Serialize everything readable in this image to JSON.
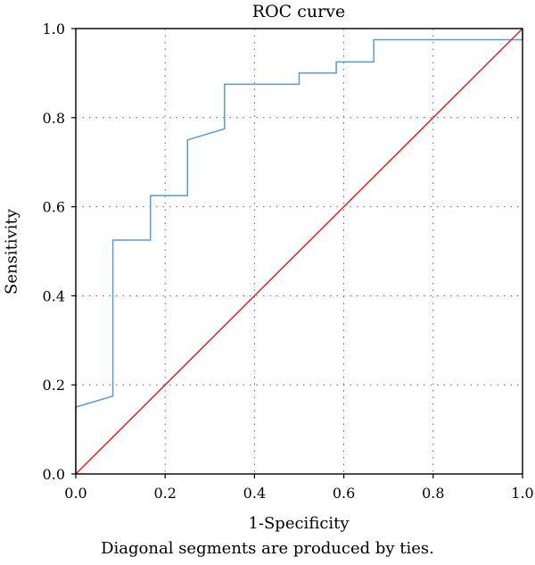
{
  "chart_data": {
    "type": "line",
    "title": "ROC curve",
    "xlabel": "1-Specificity",
    "ylabel": "Sensitivity",
    "footnote": "Diagonal segments are produced by ties.",
    "xlim": [
      0,
      1
    ],
    "ylim": [
      0,
      1
    ],
    "xticks": [
      "0.0",
      "0.2",
      "0.4",
      "0.6",
      "0.8",
      "1.0"
    ],
    "yticks": [
      "0.0",
      "0.2",
      "0.4",
      "0.6",
      "0.8",
      "1.0"
    ],
    "grid": "dotted",
    "series": [
      {
        "color": "#5b9bd5",
        "x": [
          0,
          0,
          0.083,
          0.083,
          0.167,
          0.167,
          0.25,
          0.25,
          0.333,
          0.333,
          0.5,
          0.5,
          0.583,
          0.583,
          0.667,
          0.667,
          1.0,
          1.0
        ],
        "y": [
          0,
          0.15,
          0.175,
          0.525,
          0.525,
          0.625,
          0.625,
          0.75,
          0.775,
          0.875,
          0.875,
          0.9,
          0.9,
          0.925,
          0.925,
          0.975,
          0.975,
          1.0
        ]
      },
      {
        "color": "#e8231e",
        "x": [
          0,
          1
        ],
        "y": [
          0,
          1
        ]
      }
    ]
  }
}
